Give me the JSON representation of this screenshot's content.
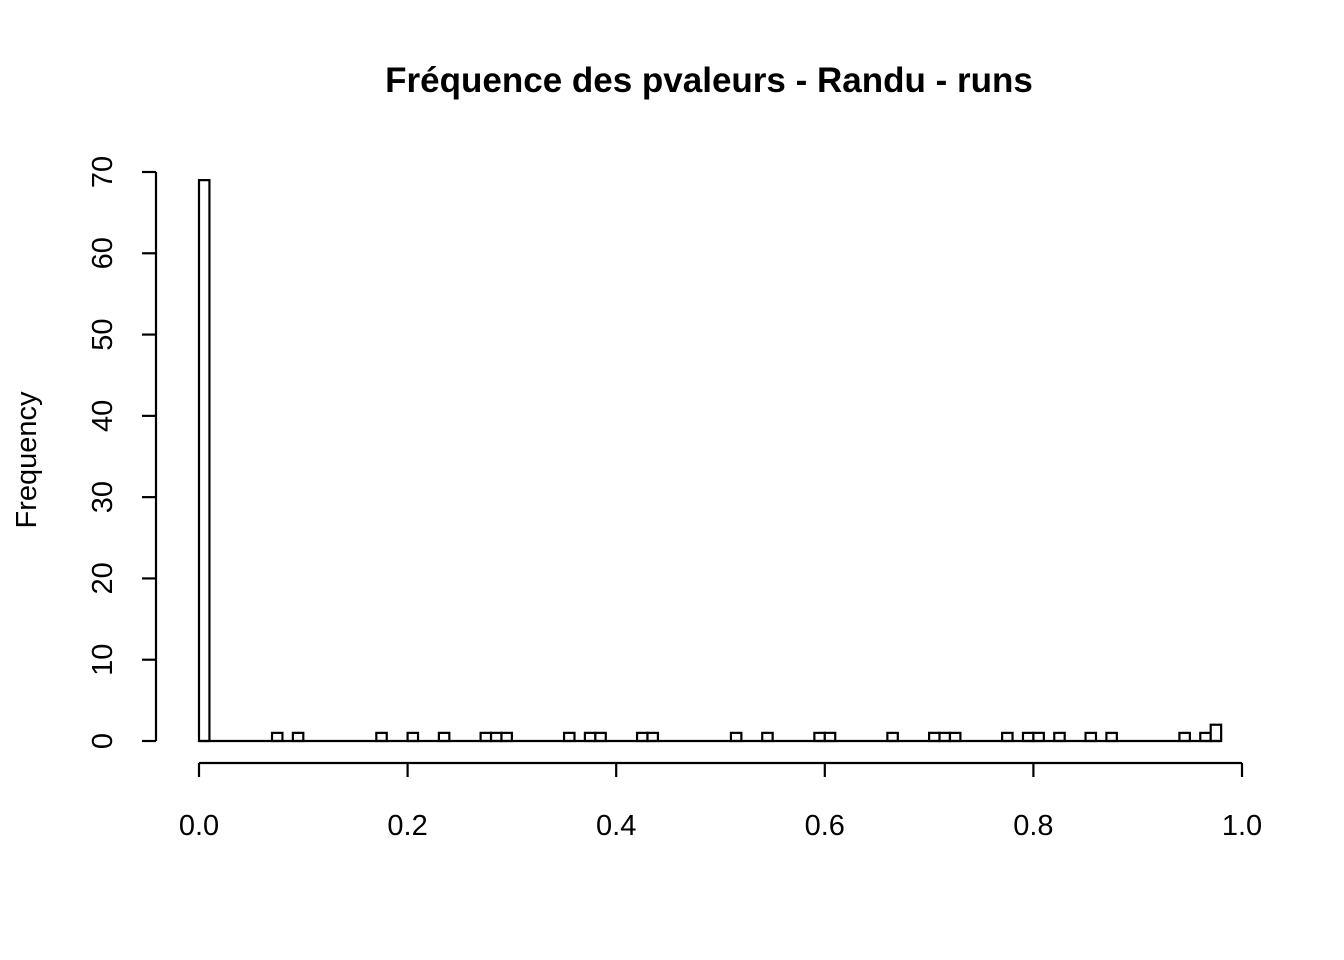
{
  "chart_data": {
    "type": "bar",
    "title": "Fréquence des pvaleurs - Randu - runs",
    "xlabel": "",
    "ylabel": "Frequency",
    "xlim": [
      0,
      1
    ],
    "ylim": [
      0,
      70
    ],
    "bin_width": 0.01,
    "x_ticks": [
      "0.0",
      "0.2",
      "0.4",
      "0.6",
      "0.8",
      "1.0"
    ],
    "y_ticks": [
      "0",
      "10",
      "20",
      "30",
      "40",
      "50",
      "60",
      "70"
    ],
    "grid": false,
    "legend": "none",
    "bars": [
      {
        "x0": 0.0,
        "x1": 0.01,
        "value": 69
      },
      {
        "x0": 0.07,
        "x1": 0.08,
        "value": 1
      },
      {
        "x0": 0.09,
        "x1": 0.1,
        "value": 1
      },
      {
        "x0": 0.17,
        "x1": 0.18,
        "value": 1
      },
      {
        "x0": 0.2,
        "x1": 0.21,
        "value": 1
      },
      {
        "x0": 0.23,
        "x1": 0.24,
        "value": 1
      },
      {
        "x0": 0.27,
        "x1": 0.28,
        "value": 1
      },
      {
        "x0": 0.28,
        "x1": 0.29,
        "value": 1
      },
      {
        "x0": 0.29,
        "x1": 0.3,
        "value": 1
      },
      {
        "x0": 0.35,
        "x1": 0.36,
        "value": 1
      },
      {
        "x0": 0.37,
        "x1": 0.38,
        "value": 1
      },
      {
        "x0": 0.38,
        "x1": 0.39,
        "value": 1
      },
      {
        "x0": 0.42,
        "x1": 0.43,
        "value": 1
      },
      {
        "x0": 0.43,
        "x1": 0.44,
        "value": 1
      },
      {
        "x0": 0.51,
        "x1": 0.52,
        "value": 1
      },
      {
        "x0": 0.54,
        "x1": 0.55,
        "value": 1
      },
      {
        "x0": 0.59,
        "x1": 0.6,
        "value": 1
      },
      {
        "x0": 0.6,
        "x1": 0.61,
        "value": 1
      },
      {
        "x0": 0.66,
        "x1": 0.67,
        "value": 1
      },
      {
        "x0": 0.7,
        "x1": 0.71,
        "value": 1
      },
      {
        "x0": 0.71,
        "x1": 0.72,
        "value": 1
      },
      {
        "x0": 0.72,
        "x1": 0.73,
        "value": 1
      },
      {
        "x0": 0.77,
        "x1": 0.78,
        "value": 1
      },
      {
        "x0": 0.79,
        "x1": 0.8,
        "value": 1
      },
      {
        "x0": 0.8,
        "x1": 0.81,
        "value": 1
      },
      {
        "x0": 0.82,
        "x1": 0.83,
        "value": 1
      },
      {
        "x0": 0.85,
        "x1": 0.86,
        "value": 1
      },
      {
        "x0": 0.87,
        "x1": 0.88,
        "value": 1
      },
      {
        "x0": 0.94,
        "x1": 0.95,
        "value": 1
      },
      {
        "x0": 0.96,
        "x1": 0.97,
        "value": 1
      },
      {
        "x0": 0.97,
        "x1": 0.98,
        "value": 2
      }
    ]
  },
  "colors": {
    "bar_fill": "#ffffff",
    "bar_stroke": "#000000",
    "axis": "#000000",
    "text": "#000000",
    "background": "#ffffff"
  }
}
